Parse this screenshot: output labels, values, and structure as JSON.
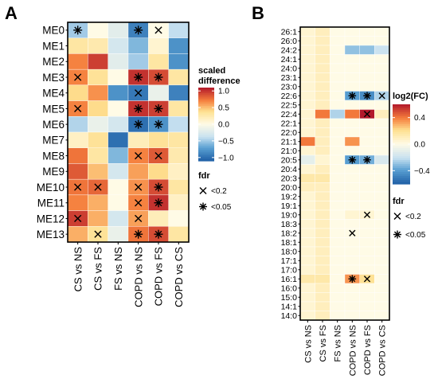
{
  "chart_data": [
    {
      "panel": "A",
      "type": "heatmap",
      "rows": [
        "ME0",
        "ME1",
        "ME2",
        "ME3",
        "ME4",
        "ME5",
        "ME6",
        "ME7",
        "ME8",
        "ME9",
        "ME10",
        "ME11",
        "ME12",
        "ME13"
      ],
      "columns": [
        "CS vs NS",
        "CS vs FS",
        "FS vs NS",
        "COPD vs NS",
        "COPD vs FS",
        "COPD vs CS"
      ],
      "values": [
        [
          -0.5,
          0.0,
          -0.2,
          -0.9,
          0.0,
          -0.4
        ],
        [
          0.3,
          0.25,
          -0.3,
          -0.6,
          0.1,
          -0.8
        ],
        [
          0.7,
          0.95,
          -0.2,
          -0.5,
          0.3,
          -0.8
        ],
        [
          0.7,
          0.35,
          0.0,
          1.0,
          0.9,
          0.3
        ],
        [
          0.4,
          0.65,
          -0.8,
          -0.95,
          -0.15,
          -0.9
        ],
        [
          0.7,
          0.4,
          0.0,
          1.0,
          0.95,
          0.3
        ],
        [
          -0.45,
          -0.15,
          -0.3,
          -1.0,
          -0.8,
          -0.4
        ],
        [
          0.15,
          0.35,
          -1.0,
          0.2,
          0.35,
          0.3
        ],
        [
          0.75,
          0.3,
          -0.6,
          0.7,
          0.85,
          0.25
        ],
        [
          0.85,
          0.5,
          -0.3,
          0.6,
          0.4,
          0.15
        ],
        [
          0.75,
          0.8,
          0.0,
          0.65,
          0.9,
          0.3
        ],
        [
          0.7,
          0.55,
          0.0,
          0.7,
          1.0,
          0.15
        ],
        [
          0.95,
          0.55,
          -0.3,
          0.6,
          0.2,
          0.0
        ],
        [
          0.55,
          0.35,
          -0.15,
          0.75,
          0.9,
          0.3
        ]
      ],
      "fdr": [
        [
          "<0.05",
          "",
          "",
          "<0.05",
          "<0.2",
          ""
        ],
        [
          "",
          "",
          "",
          "",
          "",
          ""
        ],
        [
          "",
          "",
          "",
          "",
          "",
          ""
        ],
        [
          "<0.2",
          "",
          "",
          "<0.05",
          "<0.05",
          ""
        ],
        [
          "",
          "",
          "",
          "<0.2",
          "",
          ""
        ],
        [
          "<0.2",
          "",
          "",
          "<0.05",
          "<0.05",
          ""
        ],
        [
          "",
          "",
          "",
          "<0.05",
          "<0.05",
          ""
        ],
        [
          "",
          "",
          "",
          "",
          "",
          ""
        ],
        [
          "",
          "",
          "",
          "<0.2",
          "<0.2",
          ""
        ],
        [
          "",
          "",
          "",
          "",
          "",
          ""
        ],
        [
          "<0.2",
          "<0.2",
          "",
          "<0.2",
          "<0.05",
          ""
        ],
        [
          "",
          "",
          "",
          "<0.2",
          "<0.05",
          ""
        ],
        [
          "<0.2",
          "",
          "",
          "<0.2",
          "",
          ""
        ],
        [
          "",
          "<0.2",
          "",
          "<0.05",
          "<0.05",
          ""
        ]
      ],
      "colorbar": {
        "title": "scaled\ndifference",
        "ticks": [
          1.0,
          0.5,
          0.0,
          -0.5,
          -1.0
        ],
        "tick_labels": [
          "1.0",
          "0.5",
          "0.0",
          "−0.5",
          "−1.0"
        ],
        "range": [
          -1.1,
          1.1
        ]
      },
      "fdr_legend": {
        "title": "fdr",
        "items": [
          "<0.2",
          "<0.05"
        ]
      },
      "colors": {
        "low": "#1f5fa6",
        "mid": "#fffbe6",
        "high": "#b2182b"
      }
    },
    {
      "panel": "B",
      "type": "heatmap",
      "rows": [
        "26:1",
        "26:0",
        "24:2",
        "24:1",
        "24:0",
        "23:1",
        "23:0",
        "22:6",
        "22:5",
        "22:4",
        "22:1",
        "22:0",
        "21:1",
        "21:0",
        "20:5",
        "20:4",
        "20:3",
        "20:0",
        "19:2",
        "19:1",
        "19:0",
        "18:3",
        "18:2",
        "18:1",
        "18:0",
        "17:1",
        "17:0",
        "16:1",
        "16:0",
        "15:0",
        "14:1",
        "14:0"
      ],
      "columns": [
        "CS vs NS",
        "CS vs FS",
        "FS vs NS",
        "COPD vs NS",
        "COPD vs FS",
        "COPD vs CS"
      ],
      "values": [
        [
          0.05,
          0.1,
          0.0,
          0.0,
          0.0,
          0.0
        ],
        [
          0.05,
          0.1,
          0.0,
          0.0,
          0.0,
          0.0
        ],
        [
          0.05,
          0.1,
          0.0,
          -0.3,
          -0.3,
          -0.2
        ],
        [
          0.05,
          0.1,
          0.0,
          0.0,
          0.0,
          0.0
        ],
        [
          0.05,
          0.1,
          0.0,
          0.0,
          0.0,
          0.0
        ],
        [
          0.05,
          0.1,
          0.0,
          0.0,
          0.0,
          0.0
        ],
        [
          0.05,
          0.1,
          0.0,
          0.0,
          0.0,
          0.0
        ],
        [
          0.05,
          0.1,
          0.0,
          -0.4,
          -0.45,
          -0.25
        ],
        [
          0.05,
          0.1,
          0.0,
          0.0,
          0.0,
          0.0
        ],
        [
          0.05,
          0.4,
          -0.25,
          0.4,
          0.6,
          0.1
        ],
        [
          0.05,
          0.1,
          0.0,
          0.0,
          0.0,
          0.0
        ],
        [
          0.05,
          0.1,
          0.0,
          0.0,
          0.0,
          0.0
        ],
        [
          0.4,
          0.1,
          0.0,
          0.35,
          0.0,
          0.0
        ],
        [
          0.05,
          0.1,
          0.0,
          0.0,
          0.0,
          0.0
        ],
        [
          -0.1,
          0.05,
          0.0,
          -0.4,
          -0.35,
          -0.15
        ],
        [
          0.05,
          0.1,
          0.0,
          0.0,
          0.0,
          0.0
        ],
        [
          0.15,
          0.15,
          0.0,
          0.0,
          0.0,
          0.0
        ],
        [
          0.1,
          0.1,
          0.0,
          0.0,
          0.0,
          0.0
        ],
        [
          0.05,
          0.1,
          0.0,
          0.0,
          0.0,
          0.0
        ],
        [
          0.05,
          0.1,
          0.0,
          0.0,
          0.0,
          0.0
        ],
        [
          0.05,
          0.1,
          0.0,
          0.05,
          0.05,
          0.0
        ],
        [
          0.05,
          0.1,
          0.0,
          0.0,
          0.0,
          0.0
        ],
        [
          0.05,
          0.1,
          0.0,
          0.0,
          0.0,
          0.0
        ],
        [
          0.05,
          0.1,
          0.0,
          0.0,
          0.0,
          0.0
        ],
        [
          0.05,
          0.1,
          0.0,
          0.0,
          0.0,
          0.0
        ],
        [
          0.05,
          0.1,
          0.0,
          0.0,
          0.0,
          0.0
        ],
        [
          0.05,
          0.1,
          0.0,
          0.0,
          0.0,
          0.0
        ],
        [
          0.15,
          0.15,
          0.0,
          0.35,
          0.2,
          0.0
        ],
        [
          0.05,
          0.1,
          0.0,
          0.0,
          0.0,
          0.0
        ],
        [
          0.05,
          0.1,
          0.0,
          0.0,
          0.0,
          0.0
        ],
        [
          0.05,
          0.1,
          0.0,
          0.0,
          0.0,
          0.0
        ],
        [
          0.05,
          0.1,
          0.0,
          0.0,
          0.0,
          0.0
        ]
      ],
      "fdr": [
        [
          "",
          "",
          "",
          "",
          "",
          ""
        ],
        [
          "",
          "",
          "",
          "",
          "",
          ""
        ],
        [
          "",
          "",
          "",
          "",
          "",
          ""
        ],
        [
          "",
          "",
          "",
          "",
          "",
          ""
        ],
        [
          "",
          "",
          "",
          "",
          "",
          ""
        ],
        [
          "",
          "",
          "",
          "",
          "",
          ""
        ],
        [
          "",
          "",
          "",
          "",
          "",
          ""
        ],
        [
          "",
          "",
          "",
          "<0.05",
          "<0.05",
          "<0.2"
        ],
        [
          "",
          "",
          "",
          "",
          "",
          ""
        ],
        [
          "",
          "",
          "",
          "",
          "<0.2",
          ""
        ],
        [
          "",
          "",
          "",
          "",
          "",
          ""
        ],
        [
          "",
          "",
          "",
          "",
          "",
          ""
        ],
        [
          "",
          "",
          "",
          "",
          "",
          ""
        ],
        [
          "",
          "",
          "",
          "",
          "",
          ""
        ],
        [
          "",
          "",
          "",
          "<0.05",
          "<0.05",
          ""
        ],
        [
          "",
          "",
          "",
          "",
          "",
          ""
        ],
        [
          "",
          "",
          "",
          "",
          "",
          ""
        ],
        [
          "",
          "",
          "",
          "",
          "",
          ""
        ],
        [
          "",
          "",
          "",
          "",
          "",
          ""
        ],
        [
          "",
          "",
          "",
          "",
          "",
          ""
        ],
        [
          "",
          "",
          "",
          "",
          "<0.2",
          ""
        ],
        [
          "",
          "",
          "",
          "",
          "",
          ""
        ],
        [
          "",
          "",
          "",
          "<0.2",
          "",
          ""
        ],
        [
          "",
          "",
          "",
          "",
          "",
          ""
        ],
        [
          "",
          "",
          "",
          "",
          "",
          ""
        ],
        [
          "",
          "",
          "",
          "",
          "",
          ""
        ],
        [
          "",
          "",
          "",
          "",
          "",
          ""
        ],
        [
          "",
          "",
          "",
          "<0.05",
          "<0.2",
          ""
        ],
        [
          "",
          "",
          "",
          "",
          "",
          ""
        ],
        [
          "",
          "",
          "",
          "",
          "",
          ""
        ],
        [
          "",
          "",
          "",
          "",
          "",
          ""
        ],
        [
          "",
          "",
          "",
          "",
          "",
          ""
        ]
      ],
      "colorbar": {
        "title": "log2(FC)",
        "ticks": [
          0.4,
          0.0,
          -0.4
        ],
        "tick_labels": [
          "0.4",
          "0.0",
          "−0.4"
        ],
        "range": [
          -0.6,
          0.6
        ]
      },
      "fdr_legend": {
        "title": "fdr",
        "items": [
          "<0.2",
          "<0.05"
        ]
      },
      "colors": {
        "low": "#1f5fa6",
        "mid": "#fffbe6",
        "high": "#b2182b"
      }
    }
  ]
}
